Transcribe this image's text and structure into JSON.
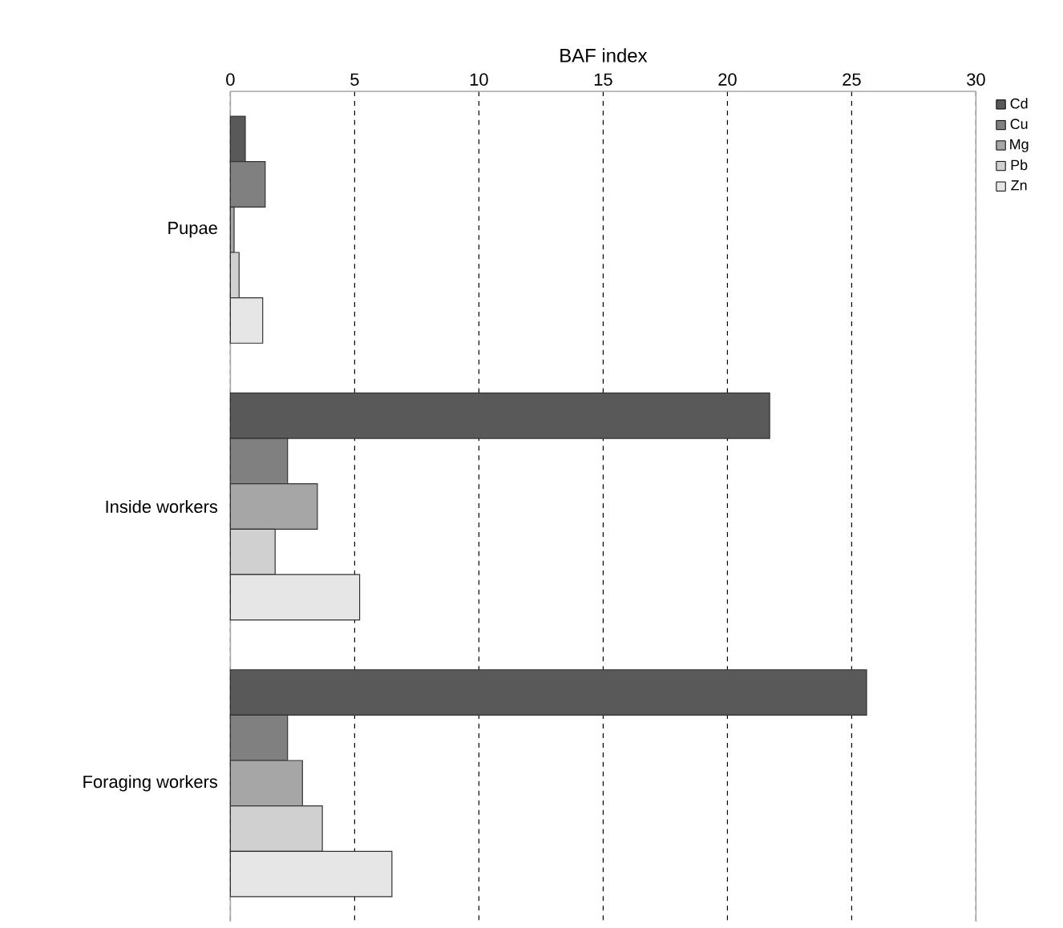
{
  "chart_data": {
    "type": "bar",
    "orientation": "horizontal",
    "xlabel": "BAF index",
    "categories": [
      "Pupae",
      "Inside workers",
      "Foraging workers"
    ],
    "series": [
      {
        "name": "Cd",
        "color": "#595959",
        "values": [
          0.6,
          21.7,
          25.6
        ]
      },
      {
        "name": "Cu",
        "color": "#808080",
        "values": [
          1.4,
          2.3,
          2.3
        ]
      },
      {
        "name": "Mg",
        "color": "#a6a6a6",
        "values": [
          0.15,
          3.5,
          2.9
        ]
      },
      {
        "name": "Pb",
        "color": "#d0d0d0",
        "values": [
          0.35,
          1.8,
          3.7
        ]
      },
      {
        "name": "Zn",
        "color": "#e6e6e6",
        "values": [
          1.3,
          5.2,
          6.5
        ]
      }
    ],
    "xlim": [
      0,
      30
    ],
    "xticks": [
      0,
      5,
      10,
      15,
      20,
      25,
      30
    ],
    "grid": "x",
    "legend": "top right"
  }
}
